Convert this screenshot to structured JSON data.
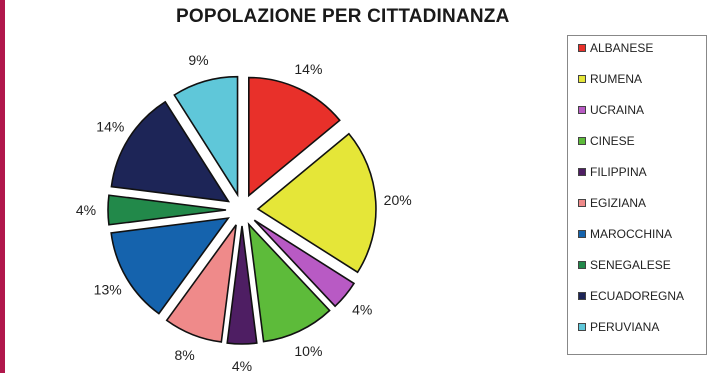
{
  "chart_data": {
    "type": "pie",
    "title": "POPOLAZIONE PER CITTADINANZA",
    "legend_position": "right",
    "slices": [
      {
        "label": "ALBANESE",
        "value": 14,
        "display": "14%",
        "color": "#e8302a"
      },
      {
        "label": "RUMENA",
        "value": 20,
        "display": "20%",
        "color": "#e5e638"
      },
      {
        "label": "UCRAINA",
        "value": 4,
        "display": "4%",
        "color": "#b85ac4"
      },
      {
        "label": "CINESE",
        "value": 10,
        "display": "10%",
        "color": "#5dbb3a"
      },
      {
        "label": "FILIPPINA",
        "value": 4,
        "display": "4%",
        "color": "#4e1e63"
      },
      {
        "label": "EGIZIANA",
        "value": 8,
        "display": "8%",
        "color": "#ef8a8a"
      },
      {
        "label": "MAROCCHINA",
        "value": 13,
        "display": "13%",
        "color": "#1563ad"
      },
      {
        "label": "SENEGALESE",
        "value": 4,
        "display": "4%",
        "color": "#22894a"
      },
      {
        "label": "ECUADOREGNA",
        "value": 14,
        "display": "14%",
        "color": "#1d2557"
      },
      {
        "label": "PERUVIANA",
        "value": 9,
        "display": "9%",
        "color": "#5fc7d9"
      }
    ]
  },
  "theme": {
    "accent_rule": "#b0174b"
  }
}
